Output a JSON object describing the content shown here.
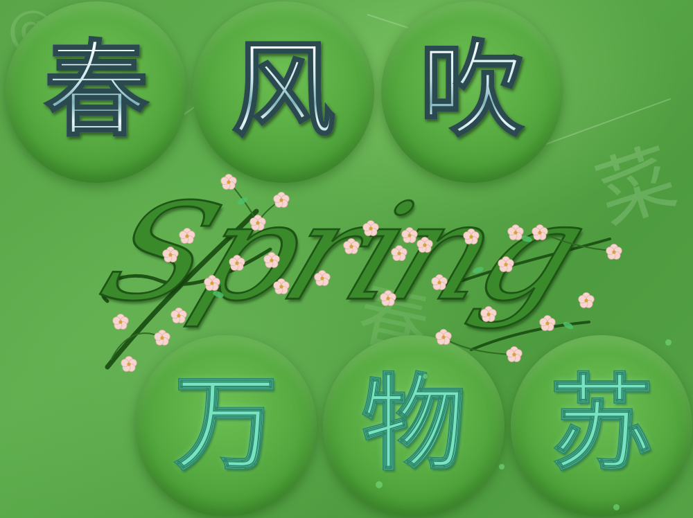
{
  "title_glyphs_top": [
    "春",
    "风",
    "吹"
  ],
  "title_glyphs_bottom": [
    "万",
    "物",
    "苏"
  ],
  "word": "Spring",
  "watermarks": [
    "菜",
    "春",
    "@"
  ],
  "colors": {
    "background": "#5aa548",
    "circle": "#58ac42",
    "top_glyph": "#cfe9ee",
    "bottom_glyph": "#78e3c3",
    "word": "#3a8a2c",
    "blossom": "#f6d2cf"
  }
}
